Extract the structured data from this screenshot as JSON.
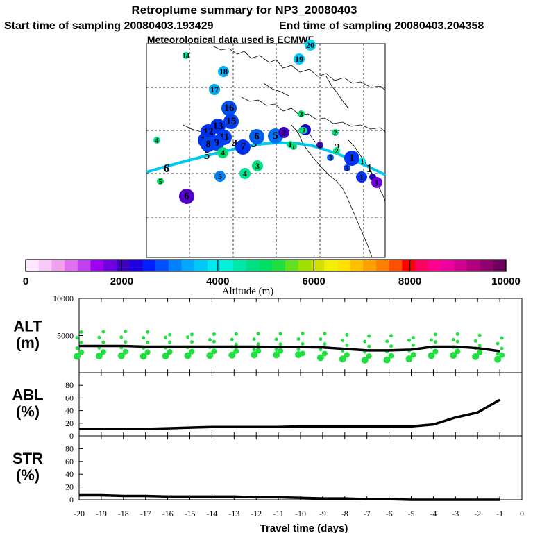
{
  "header": {
    "title": "Retroplume summary for NP3_20080403",
    "start_time": "Start time of sampling 20080403.193429",
    "end_time": "End time of sampling 20080403.204358",
    "met_data": "Meteorological data used is ECMWF"
  },
  "colorbar": {
    "ticks": [
      "0",
      "2000",
      "4000",
      "6000",
      "8000",
      "10000"
    ],
    "label": "Altitude (m)",
    "colors": [
      "#ffe8ff",
      "#f8c8f8",
      "#f0a0f0",
      "#e070f0",
      "#c040f0",
      "#a000f0",
      "#7000e0",
      "#4000c0",
      "#2000e0",
      "#0020ff",
      "#0050ff",
      "#0080ff",
      "#00a8ff",
      "#00c8f8",
      "#00e8f0",
      "#00f0d8",
      "#00e8a8",
      "#00e080",
      "#00e060",
      "#20e040",
      "#60e020",
      "#a0e000",
      "#d0e000",
      "#f0f000",
      "#ffe000",
      "#ffc000",
      "#ffa000",
      "#ff8000",
      "#ff5000",
      "#ff0000",
      "#ff0060",
      "#ff0090",
      "#f000a0",
      "#d00090",
      "#b00080",
      "#900070",
      "#700060"
    ]
  },
  "map": {
    "trajectory_color": "#00c8f0",
    "markers": [
      {
        "id": "14",
        "color": "#00e890",
        "size": 1
      },
      {
        "id": "20",
        "color": "#00d8f8",
        "size": 2
      },
      {
        "id": "19",
        "color": "#00c8f8",
        "size": 2
      },
      {
        "id": "18",
        "color": "#00b0f8",
        "size": 2
      },
      {
        "id": "17",
        "color": "#00a8f0",
        "size": 2
      },
      {
        "id": "16",
        "color": "#0050f0",
        "size": 3
      },
      {
        "id": "15",
        "color": "#0040f0",
        "size": 3
      },
      {
        "id": "13",
        "color": "#0030f0",
        "size": 3
      },
      {
        "id": "12",
        "color": "#0030f0",
        "size": 3
      },
      {
        "id": "11",
        "color": "#0040f0",
        "size": 3
      },
      {
        "id": "10",
        "color": "#0030f0",
        "size": 3
      },
      {
        "id": "9",
        "color": "#0040f0",
        "size": 3
      },
      {
        "id": "8",
        "color": "#0040f0",
        "size": 3
      },
      {
        "id": "7",
        "color": "#0030f0",
        "size": 3
      },
      {
        "id": "6",
        "color": "#0060f0",
        "size": 3
      },
      {
        "id": "5",
        "color": "#0070f0",
        "size": 3
      },
      {
        "id": "4",
        "color": "#00e090",
        "size": 2
      },
      {
        "id": "3",
        "color": "#00e080",
        "size": 2
      },
      {
        "id": "2",
        "color": "#4000c0",
        "size": 2
      },
      {
        "id": "1",
        "color": "#2000d0",
        "size": 2
      },
      {
        "id": "6",
        "color": "#5000c8",
        "size": 3
      },
      {
        "id": "5",
        "color": "#0080f0",
        "size": 2
      },
      {
        "id": "4",
        "color": "#00e070",
        "size": 2
      },
      {
        "id": "3",
        "color": "#00e070",
        "size": 1
      },
      {
        "id": "5",
        "color": "#00e060",
        "size": 1
      },
      {
        "id": "4",
        "color": "#00e080",
        "size": 1
      },
      {
        "id": "3",
        "color": "#00e080",
        "size": 1
      },
      {
        "id": "2",
        "color": "#00e080",
        "size": 1
      },
      {
        "id": "2",
        "color": "#00e080",
        "size": 1
      },
      {
        "id": "1",
        "color": "#00e070",
        "size": 1
      },
      {
        "id": "3",
        "color": "#0060f0",
        "size": 1
      },
      {
        "id": "2",
        "color": "#4000c0",
        "size": 1
      },
      {
        "id": "1",
        "color": "#0030f0",
        "size": 3
      },
      {
        "id": "1",
        "color": "#00e8f0",
        "size": 1
      },
      {
        "id": "1",
        "color": "#0030f0",
        "size": 2
      },
      {
        "id": "1",
        "color": "#2000d0",
        "size": 1
      },
      {
        "id": "1",
        "color": "#7000e0",
        "size": 2
      },
      {
        "id": "3",
        "color": "#0040f0",
        "size": 1
      },
      {
        "id": "2",
        "color": "#00e080",
        "size": 1
      },
      {
        "id": "1",
        "color": "#00e080",
        "size": 1
      }
    ],
    "path_labels": [
      "6",
      "5",
      "4",
      "3",
      "2",
      "1"
    ]
  },
  "chart_data": [
    {
      "type": "line",
      "name": "ALT",
      "ylabel": "ALT (m)",
      "ylabel_lines": [
        "ALT",
        "(m)"
      ],
      "x": [
        -20,
        -19,
        -18,
        -17,
        -16,
        -15,
        -14,
        -13,
        -12,
        -11,
        -10,
        -9,
        -8,
        -7,
        -6,
        -5,
        -4,
        -3,
        -2,
        -1
      ],
      "values": [
        3600,
        3600,
        3600,
        3500,
        3500,
        3500,
        3500,
        3500,
        3500,
        3450,
        3450,
        3400,
        3200,
        3000,
        3000,
        3100,
        3500,
        3500,
        3300,
        2900
      ],
      "ylim": [
        0,
        10000
      ],
      "yticks": [
        "5000",
        "10000"
      ],
      "scatter_color": "#20e040"
    },
    {
      "type": "line",
      "name": "ABL",
      "ylabel": "ABL (%)",
      "ylabel_lines": [
        "ABL",
        "(%)"
      ],
      "x": [
        -20,
        -19,
        -18,
        -17,
        -16,
        -15,
        -14,
        -13,
        -12,
        -11,
        -10,
        -9,
        -8,
        -7,
        -6,
        -5,
        -4,
        -3,
        -2,
        -1
      ],
      "values": [
        11,
        11,
        11,
        11,
        12,
        13,
        14,
        14,
        14,
        14,
        15,
        15,
        15,
        15,
        15,
        15,
        18,
        29,
        37,
        57
      ],
      "ylim": [
        0,
        100
      ],
      "yticks": [
        "0",
        "20",
        "40",
        "60",
        "80"
      ]
    },
    {
      "type": "line",
      "name": "STR",
      "ylabel": "STR (%)",
      "ylabel_lines": [
        "STR",
        "(%)"
      ],
      "x": [
        -20,
        -19,
        -18,
        -17,
        -16,
        -15,
        -14,
        -13,
        -12,
        -11,
        -10,
        -9,
        -8,
        -7,
        -6,
        -5,
        -4,
        -3,
        -2,
        -1
      ],
      "values": [
        7,
        7,
        6,
        6,
        5,
        5,
        5,
        5,
        4,
        4,
        3,
        2,
        2,
        1,
        1,
        0,
        0,
        0,
        0,
        0
      ],
      "ylim": [
        0,
        100
      ],
      "yticks": [
        "0",
        "20",
        "40",
        "60",
        "80"
      ]
    }
  ],
  "xaxis": {
    "ticks": [
      "-20",
      "-19",
      "-18",
      "-17",
      "-16",
      "-15",
      "-14",
      "-13",
      "-12",
      "-11",
      "-10",
      "-9",
      "-8",
      "-7",
      "-6",
      "-5",
      "-4",
      "-3",
      "-2",
      "-1",
      "0"
    ],
    "label": "Travel time (days)"
  }
}
